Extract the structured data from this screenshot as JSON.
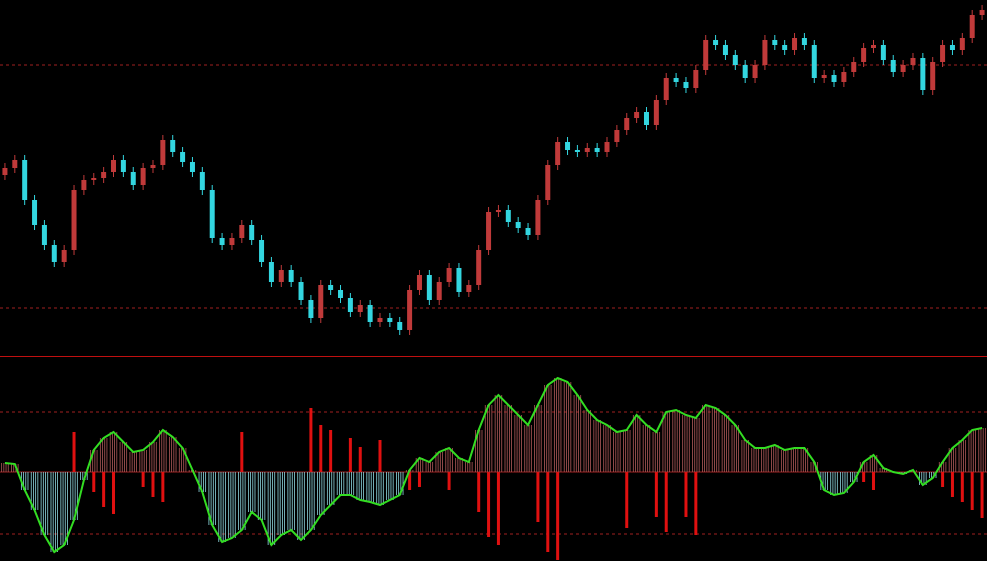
{
  "chart_data": [
    {
      "type": "candlestick",
      "ylim": [
        0,
        355
      ],
      "levels": [
        290,
        47
      ],
      "level_color": "#a02020",
      "up_color": "#c03a3a",
      "down_color": "#33d6e0",
      "open": [
        180,
        187,
        195,
        155,
        130,
        110,
        93,
        105,
        165,
        175,
        177,
        183,
        195,
        183,
        170,
        187,
        190,
        215,
        203,
        193,
        183,
        165,
        117,
        110,
        117,
        130,
        115,
        93,
        73,
        85,
        73,
        55,
        37,
        70,
        65,
        57,
        43,
        50,
        33,
        37,
        33,
        25,
        65,
        80,
        55,
        73,
        87,
        63,
        70,
        105,
        143,
        145,
        133,
        127,
        120,
        155,
        190,
        213,
        205,
        203,
        207,
        203,
        213,
        225,
        237,
        243,
        230,
        255,
        277,
        273,
        267,
        285,
        315,
        310,
        300,
        290,
        277,
        290,
        315,
        310,
        305,
        317,
        310,
        277,
        280,
        273,
        283,
        293,
        307,
        310,
        295,
        283,
        290,
        297,
        265,
        293,
        310,
        305,
        317,
        340
      ],
      "high": [
        192,
        200,
        200,
        160,
        135,
        115,
        110,
        170,
        180,
        182,
        188,
        200,
        200,
        188,
        192,
        195,
        220,
        220,
        208,
        198,
        188,
        170,
        122,
        122,
        135,
        135,
        120,
        98,
        90,
        90,
        78,
        60,
        75,
        75,
        70,
        62,
        55,
        55,
        42,
        42,
        38,
        70,
        85,
        85,
        78,
        92,
        92,
        75,
        110,
        148,
        150,
        150,
        138,
        132,
        160,
        195,
        218,
        218,
        210,
        212,
        212,
        218,
        230,
        242,
        248,
        248,
        260,
        282,
        282,
        278,
        290,
        320,
        320,
        315,
        305,
        295,
        295,
        320,
        320,
        315,
        322,
        322,
        315,
        285,
        285,
        288,
        298,
        312,
        315,
        315,
        300,
        295,
        302,
        302,
        298,
        315,
        315,
        322,
        345,
        350
      ],
      "low": [
        175,
        182,
        150,
        125,
        105,
        88,
        88,
        100,
        160,
        170,
        172,
        178,
        178,
        165,
        165,
        182,
        185,
        198,
        188,
        178,
        160,
        112,
        105,
        105,
        112,
        110,
        88,
        68,
        68,
        68,
        50,
        32,
        32,
        60,
        52,
        38,
        38,
        28,
        28,
        28,
        20,
        20,
        60,
        50,
        50,
        68,
        58,
        58,
        65,
        100,
        138,
        128,
        122,
        115,
        115,
        150,
        185,
        200,
        198,
        198,
        198,
        198,
        208,
        220,
        232,
        225,
        225,
        250,
        268,
        262,
        262,
        280,
        305,
        295,
        285,
        272,
        272,
        285,
        305,
        300,
        300,
        305,
        272,
        272,
        268,
        268,
        278,
        288,
        302,
        290,
        278,
        278,
        285,
        260,
        260,
        288,
        300,
        300,
        312,
        335
      ],
      "close": [
        187,
        195,
        155,
        130,
        110,
        93,
        105,
        165,
        175,
        177,
        183,
        195,
        183,
        170,
        187,
        190,
        215,
        203,
        193,
        183,
        165,
        117,
        110,
        117,
        130,
        115,
        93,
        73,
        85,
        73,
        55,
        37,
        70,
        65,
        57,
        43,
        50,
        33,
        37,
        33,
        25,
        65,
        80,
        55,
        73,
        87,
        63,
        70,
        105,
        143,
        145,
        133,
        127,
        120,
        155,
        190,
        213,
        205,
        203,
        207,
        203,
        213,
        225,
        237,
        243,
        230,
        255,
        277,
        273,
        267,
        285,
        315,
        310,
        300,
        290,
        277,
        290,
        315,
        310,
        305,
        317,
        310,
        277,
        280,
        273,
        283,
        293,
        307,
        310,
        295,
        283,
        290,
        297,
        265,
        293,
        310,
        305,
        317,
        340,
        345
      ]
    },
    {
      "type": "oscillator",
      "ylim": [
        -89,
        115
      ],
      "levels": [
        60,
        -62
      ],
      "level_color": "#a02020",
      "zero_color": "#a02020",
      "line_color": "#33dd22",
      "pos_color": "#b05a5a",
      "neg_color": "#8fd8e0",
      "spike_color": "#e01010",
      "values": [
        9,
        8,
        -18,
        -38,
        -63,
        -80,
        -73,
        -48,
        -8,
        22,
        34,
        40,
        30,
        20,
        22,
        30,
        42,
        35,
        24,
        2,
        -20,
        -53,
        -70,
        -66,
        -58,
        -40,
        -48,
        -73,
        -63,
        -58,
        -68,
        -58,
        -43,
        -33,
        -23,
        -23,
        -28,
        -30,
        -33,
        -28,
        -23,
        2,
        14,
        10,
        20,
        24,
        14,
        10,
        42,
        67,
        77,
        67,
        57,
        47,
        67,
        87,
        94,
        90,
        77,
        62,
        52,
        47,
        40,
        42,
        57,
        47,
        40,
        60,
        62,
        57,
        54,
        67,
        64,
        57,
        47,
        32,
        24,
        24,
        27,
        22,
        24,
        24,
        10,
        -18,
        -23,
        -21,
        -10,
        10,
        17,
        4,
        0,
        -2,
        2,
        -13,
        -6,
        10,
        24,
        32,
        42,
        44
      ],
      "spike_values": [
        null,
        null,
        null,
        null,
        null,
        null,
        null,
        40,
        null,
        -20,
        -35,
        -42,
        null,
        null,
        -15,
        -25,
        -30,
        null,
        null,
        null,
        null,
        null,
        null,
        null,
        40,
        null,
        null,
        null,
        null,
        null,
        null,
        64,
        47,
        42,
        null,
        34,
        25,
        null,
        32,
        null,
        null,
        -18,
        -15,
        null,
        null,
        -18,
        null,
        null,
        -40,
        -65,
        -73,
        null,
        null,
        null,
        -50,
        -80,
        -88,
        null,
        null,
        null,
        null,
        null,
        null,
        -56,
        null,
        null,
        -45,
        -60,
        null,
        -45,
        -63,
        null,
        null,
        null,
        null,
        null,
        null,
        null,
        null,
        null,
        null,
        null,
        null,
        null,
        null,
        null,
        null,
        -10,
        -18,
        null,
        null,
        null,
        null,
        null,
        null,
        -15,
        -25,
        -30,
        -38,
        -46
      ]
    }
  ]
}
